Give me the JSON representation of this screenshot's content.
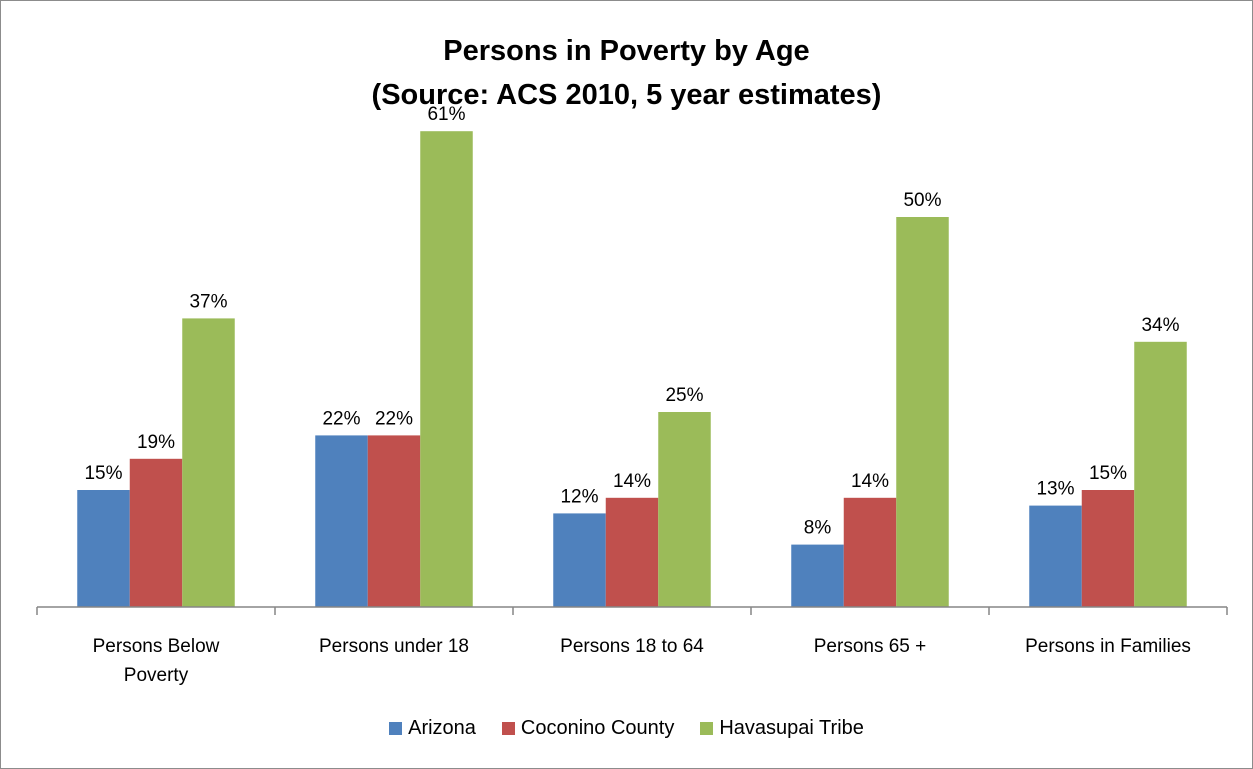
{
  "chart_data": {
    "type": "bar",
    "title": [
      "Persons in Poverty by Age",
      "(Source: ACS 2010, 5 year estimates)"
    ],
    "xlabel": "",
    "ylabel": "",
    "ylim": [
      0,
      70
    ],
    "grid": false,
    "legend_position": "bottom",
    "categories": [
      [
        "Persons Below",
        "Poverty"
      ],
      [
        "Persons under 18"
      ],
      [
        "Persons 18 to 64"
      ],
      [
        "Persons 65 +"
      ],
      [
        "Persons in Families"
      ]
    ],
    "series": [
      {
        "name": "Arizona",
        "color": "#4f81bd",
        "values": [
          15,
          22,
          12,
          8,
          13
        ]
      },
      {
        "name": "Coconino County",
        "color": "#c0504d",
        "values": [
          19,
          22,
          14,
          14,
          15
        ]
      },
      {
        "name": "Havasupai Tribe",
        "color": "#9bbb59",
        "values": [
          37,
          61,
          25,
          50,
          34
        ]
      }
    ],
    "value_suffix": "%"
  }
}
